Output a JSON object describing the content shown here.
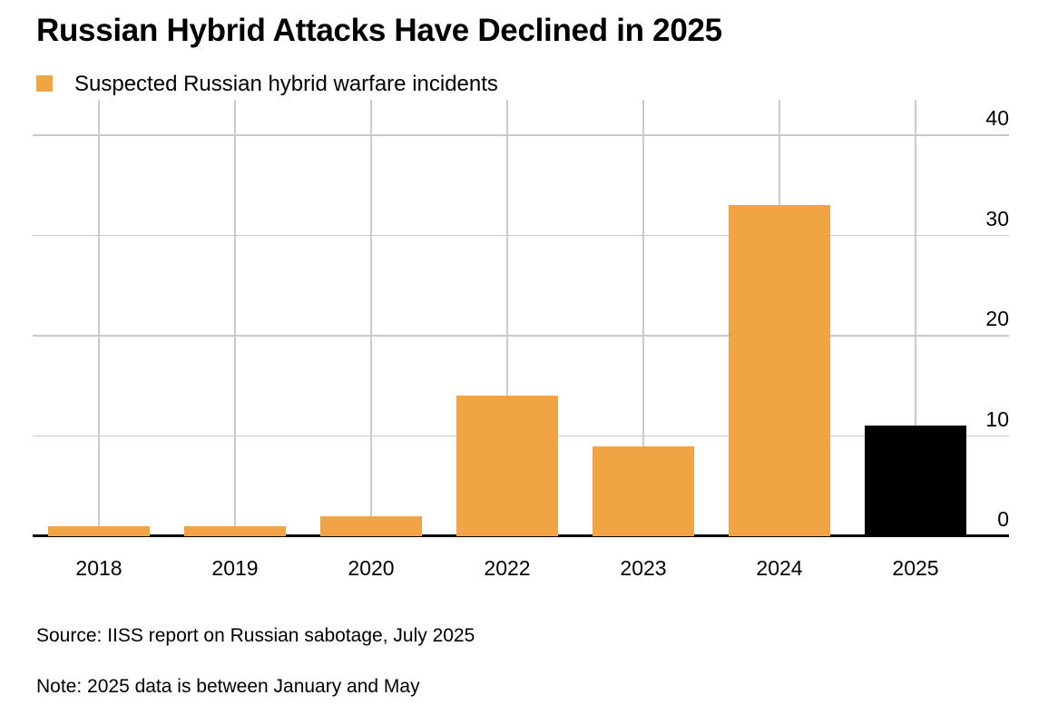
{
  "title": "Russian Hybrid Attacks Have Declined in 2025",
  "legend": {
    "label": "Suspected Russian hybrid warfare incidents",
    "swatch_color": "#F0A444"
  },
  "source": "Source: IISS report on Russian sabotage, July 2025",
  "note": "Note: 2025 data is between January and May",
  "chart_data": {
    "type": "bar",
    "title": "Russian Hybrid Attacks Have Declined in 2025",
    "series_name": "Suspected Russian hybrid warfare incidents",
    "categories": [
      "2018",
      "2019",
      "2020",
      "2022",
      "2023",
      "2024",
      "2025"
    ],
    "values": [
      1,
      1,
      2,
      14,
      9,
      33,
      11
    ],
    "y_ticks": [
      0,
      10,
      20,
      30,
      40
    ],
    "ylim": [
      0,
      40
    ],
    "xlabel": "",
    "ylabel": "",
    "grid": true,
    "legend_position": "top-left",
    "tick_label_side": "right",
    "bar_color": "#F0A444",
    "highlight_category": "2025",
    "highlight_color": "#000000"
  },
  "colors": {
    "background": "#FFFFFF",
    "grid": "#C9C9C9",
    "axis": "#000000",
    "text": "#000000"
  }
}
